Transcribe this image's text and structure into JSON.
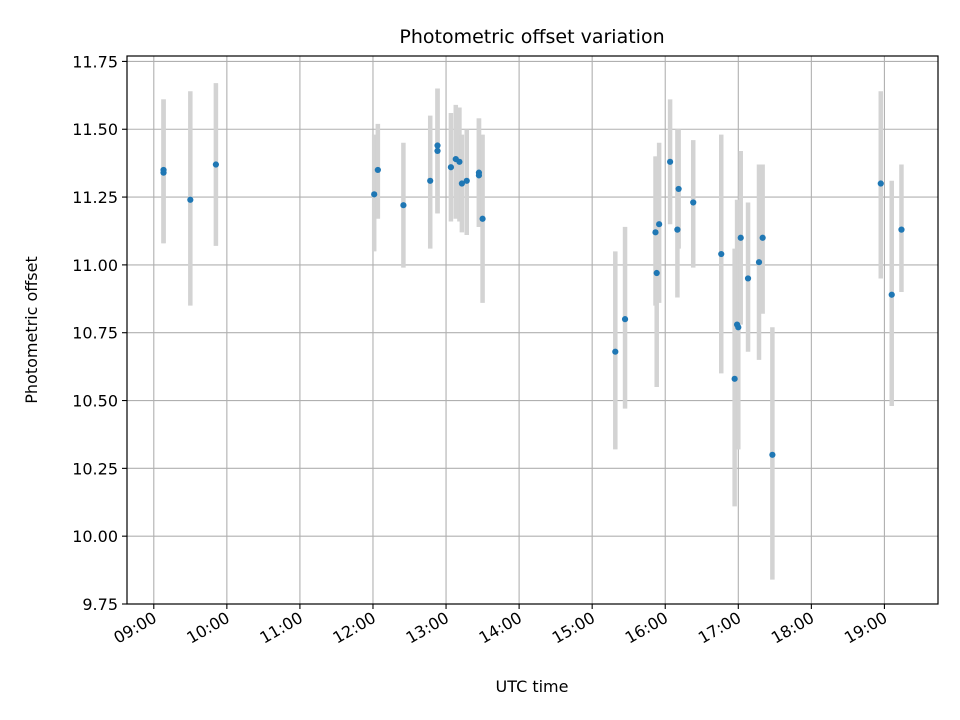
{
  "chart_data": {
    "type": "scatter",
    "title": "Photometric offset variation",
    "xlabel": "UTC time",
    "ylabel": "Photometric offset",
    "x_unit": "UTC time",
    "xlim": [
      "08:38",
      "19:44"
    ],
    "ylim": [
      9.75,
      11.77
    ],
    "x_ticks": [
      "09:00",
      "10:00",
      "11:00",
      "12:00",
      "13:00",
      "14:00",
      "15:00",
      "16:00",
      "17:00",
      "18:00",
      "19:00"
    ],
    "y_ticks": [
      "9.75",
      "10.00",
      "10.25",
      "10.50",
      "10.75",
      "11.00",
      "11.25",
      "11.50",
      "11.75"
    ],
    "grid": true,
    "legend": "none",
    "colors": {
      "marker": "#1f77b4",
      "errorbar": "#d3d3d3",
      "grid": "#b0b0b0"
    },
    "series": [
      {
        "points": [
          {
            "x": "09:08",
            "y": 11.35,
            "ylo": 11.08,
            "yhi": 11.61
          },
          {
            "x": "09:08",
            "y": 11.34,
            "ylo": 11.08,
            "yhi": 11.61
          },
          {
            "x": "09:30",
            "y": 11.24,
            "ylo": 10.85,
            "yhi": 11.64
          },
          {
            "x": "09:51",
            "y": 11.37,
            "ylo": 11.07,
            "yhi": 11.67
          },
          {
            "x": "12:01",
            "y": 11.26,
            "ylo": 11.05,
            "yhi": 11.48
          },
          {
            "x": "12:04",
            "y": 11.35,
            "ylo": 11.17,
            "yhi": 11.52
          },
          {
            "x": "12:25",
            "y": 11.22,
            "ylo": 10.99,
            "yhi": 11.45
          },
          {
            "x": "12:47",
            "y": 11.31,
            "ylo": 11.06,
            "yhi": 11.55
          },
          {
            "x": "12:53",
            "y": 11.44,
            "ylo": 11.19,
            "yhi": 11.65
          },
          {
            "x": "12:53",
            "y": 11.42,
            "ylo": 11.19,
            "yhi": 11.65
          },
          {
            "x": "13:04",
            "y": 11.36,
            "ylo": 11.16,
            "yhi": 11.56
          },
          {
            "x": "13:08",
            "y": 11.39,
            "ylo": 11.17,
            "yhi": 11.59
          },
          {
            "x": "13:11",
            "y": 11.38,
            "ylo": 11.16,
            "yhi": 11.58
          },
          {
            "x": "13:13",
            "y": 11.3,
            "ylo": 11.12,
            "yhi": 11.48
          },
          {
            "x": "13:17",
            "y": 11.31,
            "ylo": 11.11,
            "yhi": 11.5
          },
          {
            "x": "13:27",
            "y": 11.34,
            "ylo": 11.14,
            "yhi": 11.54
          },
          {
            "x": "13:27",
            "y": 11.33,
            "ylo": 11.14,
            "yhi": 11.54
          },
          {
            "x": "13:30",
            "y": 11.17,
            "ylo": 10.86,
            "yhi": 11.48
          },
          {
            "x": "15:19",
            "y": 10.68,
            "ylo": 10.32,
            "yhi": 11.05
          },
          {
            "x": "15:27",
            "y": 10.8,
            "ylo": 10.47,
            "yhi": 11.14
          },
          {
            "x": "15:52",
            "y": 11.12,
            "ylo": 10.85,
            "yhi": 11.4
          },
          {
            "x": "15:53",
            "y": 10.97,
            "ylo": 10.55,
            "yhi": 11.4
          },
          {
            "x": "15:55",
            "y": 11.15,
            "ylo": 10.86,
            "yhi": 11.45
          },
          {
            "x": "16:04",
            "y": 11.38,
            "ylo": 11.15,
            "yhi": 11.61
          },
          {
            "x": "16:10",
            "y": 11.13,
            "ylo": 10.88,
            "yhi": 11.5
          },
          {
            "x": "16:11",
            "y": 11.28,
            "ylo": 11.06,
            "yhi": 11.5
          },
          {
            "x": "16:23",
            "y": 11.23,
            "ylo": 10.99,
            "yhi": 11.46
          },
          {
            "x": "16:46",
            "y": 11.04,
            "ylo": 10.6,
            "yhi": 11.48
          },
          {
            "x": "16:57",
            "y": 10.58,
            "ylo": 10.11,
            "yhi": 11.06
          },
          {
            "x": "16:59",
            "y": 10.78,
            "ylo": 10.32,
            "yhi": 11.24
          },
          {
            "x": "17:00",
            "y": 10.77,
            "ylo": 10.32,
            "yhi": 11.23
          },
          {
            "x": "17:02",
            "y": 11.1,
            "ylo": 10.78,
            "yhi": 11.42
          },
          {
            "x": "17:08",
            "y": 10.95,
            "ylo": 10.68,
            "yhi": 11.23
          },
          {
            "x": "17:17",
            "y": 11.01,
            "ylo": 10.65,
            "yhi": 11.37
          },
          {
            "x": "17:20",
            "y": 11.1,
            "ylo": 10.82,
            "yhi": 11.37
          },
          {
            "x": "17:28",
            "y": 10.3,
            "ylo": 9.84,
            "yhi": 10.77
          },
          {
            "x": "18:57",
            "y": 11.3,
            "ylo": 10.95,
            "yhi": 11.64
          },
          {
            "x": "19:06",
            "y": 10.89,
            "ylo": 10.48,
            "yhi": 11.31
          },
          {
            "x": "19:14",
            "y": 11.13,
            "ylo": 10.9,
            "yhi": 11.37
          }
        ]
      }
    ]
  }
}
